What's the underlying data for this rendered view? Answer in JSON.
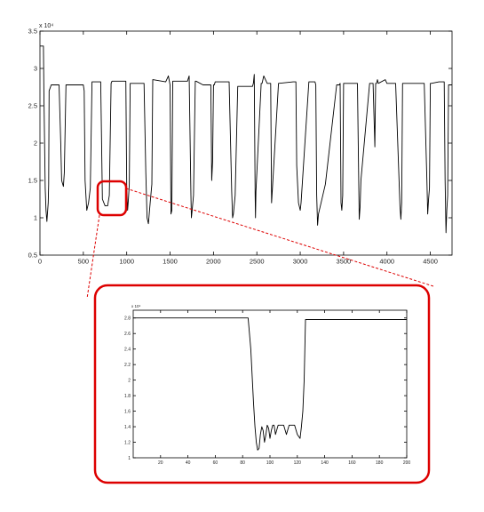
{
  "chart_data": [
    {
      "type": "line",
      "title": "",
      "xlabel": "",
      "ylabel": "",
      "exponent_label": "x 10⁴",
      "xlim": [
        0,
        4750
      ],
      "ylim": [
        0.5,
        3.5
      ],
      "xticks": [
        0,
        500,
        1000,
        1500,
        2000,
        2500,
        3000,
        3500,
        4000,
        4500
      ],
      "yticks": [
        0.5,
        1,
        1.5,
        2,
        2.5,
        3,
        3.5
      ],
      "xtick_labels": [
        "0",
        "500",
        "1000",
        "1500",
        "2000",
        "2500",
        "3000",
        "3500",
        "4000",
        "4500"
      ],
      "ytick_labels": [
        "0.5",
        "1",
        "1.5",
        "2",
        "2.5",
        "3",
        "3.5"
      ],
      "grid": false,
      "series": [
        {
          "x": [
            0,
            40,
            45,
            60,
            70,
            80,
            95,
            100,
            105,
            130,
            220,
            240,
            250,
            270,
            280,
            300,
            310,
            320,
            330,
            500,
            510,
            520,
            540,
            560,
            580,
            600,
            620,
            640,
            660,
            680,
            700,
            720,
            750,
            780,
            800,
            820,
            830,
            840,
            850,
            900,
            960,
            980,
            990,
            1000,
            1010,
            1020,
            1030,
            1040,
            1060,
            1150,
            1200,
            1220,
            1235,
            1250,
            1270,
            1290,
            1300,
            1450,
            1480,
            1500,
            1510,
            1520,
            1530,
            1700,
            1720,
            1740,
            1745,
            1755,
            1770,
            1790,
            1800,
            1880,
            1950,
            1970,
            1980,
            1990,
            2000,
            2010,
            2020,
            2030,
            2150,
            2180,
            2210,
            2220,
            2230,
            2250,
            2280,
            2300,
            2440,
            2450,
            2460,
            2470,
            2480,
            2485,
            2490,
            2550,
            2560,
            2580,
            2620,
            2650,
            2660,
            2670,
            2680,
            2750,
            2920,
            2940,
            2950,
            2960,
            2980,
            3000,
            3010,
            3100,
            3150,
            3170,
            3180,
            3190,
            3200,
            3210,
            3290,
            3420,
            3450,
            3460,
            3470,
            3480,
            3490,
            3500,
            3600,
            3620,
            3640,
            3660,
            3680,
            3690,
            3700,
            3800,
            3840,
            3860,
            3870,
            3880,
            3890,
            3900,
            3980,
            4000,
            4100,
            4150,
            4160,
            4170,
            4180,
            4190,
            4200,
            4290,
            4430,
            4460,
            4470,
            4480,
            4490,
            4500,
            4510,
            4600,
            4650,
            4660,
            4670,
            4680,
            4690,
            4700,
            4710,
            4750
          ],
          "y": [
            3.3,
            3.3,
            2.7,
            1.4,
            1.1,
            0.95,
            1.2,
            1.45,
            2.7,
            2.78,
            2.78,
            2.0,
            1.5,
            1.42,
            1.6,
            2.78,
            2.78,
            2.78,
            2.78,
            2.78,
            2.7,
            1.5,
            1.1,
            1.2,
            1.4,
            2.82,
            2.82,
            2.82,
            2.82,
            2.82,
            2.82,
            1.25,
            1.16,
            1.16,
            1.3,
            2.8,
            2.83,
            2.83,
            2.83,
            2.83,
            2.83,
            2.83,
            2.83,
            1.4,
            1.1,
            1.25,
            1.45,
            2.8,
            2.8,
            2.8,
            2.8,
            1.6,
            1.0,
            0.92,
            1.2,
            1.45,
            2.85,
            2.82,
            2.9,
            2.78,
            1.05,
            1.1,
            2.83,
            2.83,
            2.9,
            1.3,
            1.0,
            1.1,
            1.3,
            2.83,
            2.83,
            2.78,
            2.78,
            2.78,
            1.5,
            1.75,
            2.78,
            2.78,
            2.82,
            2.82,
            2.82,
            2.82,
            1.35,
            1.0,
            1.05,
            1.3,
            2.76,
            2.76,
            2.76,
            2.76,
            2.8,
            2.92,
            1.3,
            1.0,
            1.35,
            2.8,
            2.8,
            2.9,
            2.8,
            2.8,
            2.8,
            1.2,
            1.4,
            2.8,
            2.82,
            2.82,
            2.82,
            1.7,
            1.2,
            1.1,
            1.2,
            2.82,
            2.82,
            2.82,
            2.78,
            1.3,
            0.9,
            1.05,
            1.45,
            2.78,
            2.78,
            2.8,
            1.2,
            1.1,
            1.3,
            2.8,
            2.8,
            2.8,
            2.8,
            2.8,
            0.98,
            1.15,
            1.5,
            2.8,
            2.8,
            1.95,
            2.8,
            2.8,
            2.85,
            2.8,
            2.85,
            2.8,
            2.8,
            1.15,
            0.98,
            1.2,
            2.8,
            2.8,
            2.8,
            2.8,
            2.8,
            1.5,
            1.05,
            1.25,
            1.4,
            2.8,
            2.8,
            2.82,
            2.82,
            2.82,
            1.5,
            0.8,
            1.1,
            1.3,
            2.78,
            2.78
          ]
        }
      ]
    },
    {
      "type": "line",
      "title": "",
      "xlabel": "",
      "ylabel": "",
      "exponent_label": "x 10⁴",
      "xlim": [
        0,
        200
      ],
      "ylim": [
        1.0,
        2.9
      ],
      "xticks": [
        20,
        40,
        60,
        80,
        100,
        120,
        140,
        160,
        180,
        200
      ],
      "yticks": [
        1,
        1.2,
        1.4,
        1.6,
        1.8,
        2,
        2.2,
        2.4,
        2.6,
        2.8
      ],
      "xtick_labels": [
        "20",
        "40",
        "60",
        "80",
        "100",
        "120",
        "140",
        "160",
        "180",
        "200"
      ],
      "ytick_labels": [
        "1",
        "1.2",
        "1.4",
        "1.6",
        "1.8",
        "2",
        "2.2",
        "2.4",
        "2.6",
        "2.8"
      ],
      "grid": false,
      "series": [
        {
          "x": [
            0,
            84,
            86,
            88,
            89,
            90,
            91,
            92,
            93,
            94,
            95,
            96,
            97,
            98,
            99,
            100,
            101,
            102,
            103,
            104,
            106,
            108,
            110,
            112,
            114,
            116,
            118,
            120,
            122,
            123,
            124,
            125,
            126,
            128,
            200
          ],
          "y": [
            2.8,
            2.8,
            2.4,
            1.7,
            1.4,
            1.2,
            1.1,
            1.12,
            1.3,
            1.4,
            1.35,
            1.2,
            1.3,
            1.42,
            1.38,
            1.25,
            1.35,
            1.42,
            1.42,
            1.3,
            1.42,
            1.42,
            1.42,
            1.3,
            1.42,
            1.42,
            1.42,
            1.3,
            1.25,
            1.4,
            1.6,
            2.0,
            2.78,
            2.78,
            2.78
          ]
        }
      ]
    }
  ],
  "colors": {
    "trace": "#000000",
    "axis": "#000000",
    "callout": "#dd0000",
    "background": "#ffffff"
  }
}
